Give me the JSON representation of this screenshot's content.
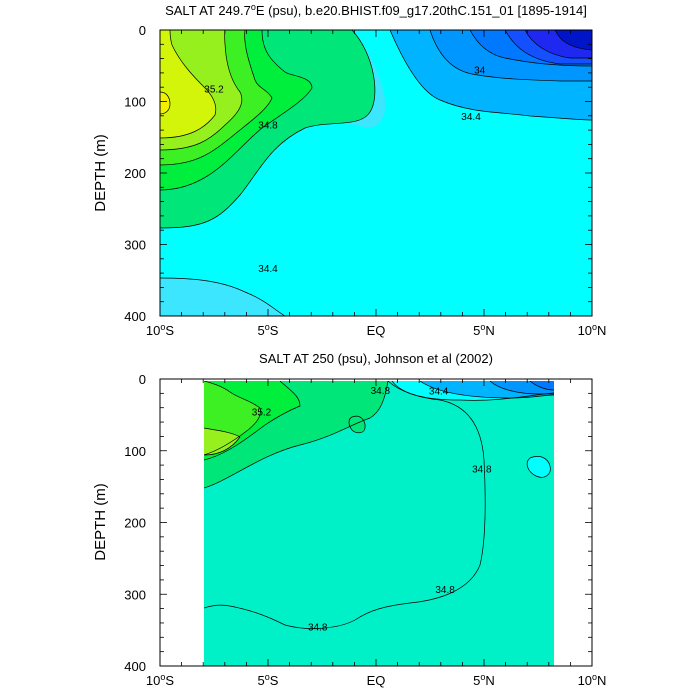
{
  "chart_data": [
    {
      "type": "contour",
      "title_main": "SALT AT 249.7",
      "title_sup": "o",
      "title_rest": "E (psu), b.e20.BHIST.f09_g17.20thC.151_01 [1895-1914]",
      "ylabel": "DEPTH (m)",
      "xlim": [
        -10,
        10
      ],
      "ylim": [
        400,
        0
      ],
      "grid": false,
      "x_ticks": [
        {
          "value": -10,
          "num": "10",
          "deg": "o",
          "hem": "S"
        },
        {
          "value": -5,
          "num": "5",
          "deg": "o",
          "hem": "S"
        },
        {
          "value": 0,
          "num": "EQ",
          "deg": "",
          "hem": ""
        },
        {
          "value": 5,
          "num": "5",
          "deg": "o",
          "hem": "N"
        },
        {
          "value": 10,
          "num": "10",
          "deg": "o",
          "hem": "N"
        }
      ],
      "y_ticks": [
        0,
        100,
        200,
        300,
        400
      ],
      "contour_labels": [
        {
          "text": "35.2",
          "lat": -7.5,
          "depth": 82
        },
        {
          "text": "34.8",
          "lat": -5.0,
          "depth": 132
        },
        {
          "text": "34",
          "lat": 4.8,
          "depth": 55
        },
        {
          "text": "34.4",
          "lat": 4.4,
          "depth": 120
        },
        {
          "text": "34.4",
          "lat": -5.0,
          "depth": 333
        }
      ],
      "colors": {
        "s34_4": "#00ffff",
        "s34_6": "#3ce6ff",
        "s33_8": "#00b4ff",
        "s33_6": "#0096ff",
        "s33_4": "#0078ff",
        "s33_2": "#1450ff",
        "s33_0": "#1e28f0",
        "s35_0": "#00e678",
        "s35_2": "#00ee3c",
        "s35_4": "#3cf024",
        "s35_6": "#96f01e",
        "s35_8": "#d2f50a"
      }
    },
    {
      "type": "contour",
      "title_main": "SALT AT 250 (psu), Johnson et al (2002)",
      "ylabel": "DEPTH (m)",
      "xlim": [
        -10,
        10
      ],
      "ylim": [
        400,
        0
      ],
      "grid": false,
      "data_lat_range": [
        -8,
        8.2
      ],
      "x_ticks": [
        {
          "value": -10,
          "num": "10",
          "deg": "o",
          "hem": "S"
        },
        {
          "value": -5,
          "num": "5",
          "deg": "o",
          "hem": "S"
        },
        {
          "value": 0,
          "num": "EQ",
          "deg": "",
          "hem": ""
        },
        {
          "value": 5,
          "num": "5",
          "deg": "o",
          "hem": "N"
        },
        {
          "value": 10,
          "num": "10",
          "deg": "o",
          "hem": "N"
        }
      ],
      "y_ticks": [
        0,
        100,
        200,
        300,
        400
      ],
      "contour_labels": [
        {
          "text": "35.2",
          "lat": -5.3,
          "depth": 45
        },
        {
          "text": "34.8",
          "lat": 0.2,
          "depth": 15
        },
        {
          "text": "34.4",
          "lat": 2.9,
          "depth": 16
        },
        {
          "text": "34.8",
          "lat": 4.9,
          "depth": 125
        },
        {
          "text": "34.8",
          "lat": 3.2,
          "depth": 293
        },
        {
          "text": "34.8",
          "lat": -2.7,
          "depth": 345
        }
      ],
      "colors": {
        "s34_8": "#00f0c8",
        "s34_6": "#00ffff",
        "s34_2": "#00b4ff",
        "s34_0": "#0096ff",
        "s33_8": "#0078ff",
        "s35_0": "#00e678",
        "s35_2": "#00ee3c",
        "s35_4": "#3cf024",
        "s35_6": "#96f01e"
      }
    }
  ]
}
